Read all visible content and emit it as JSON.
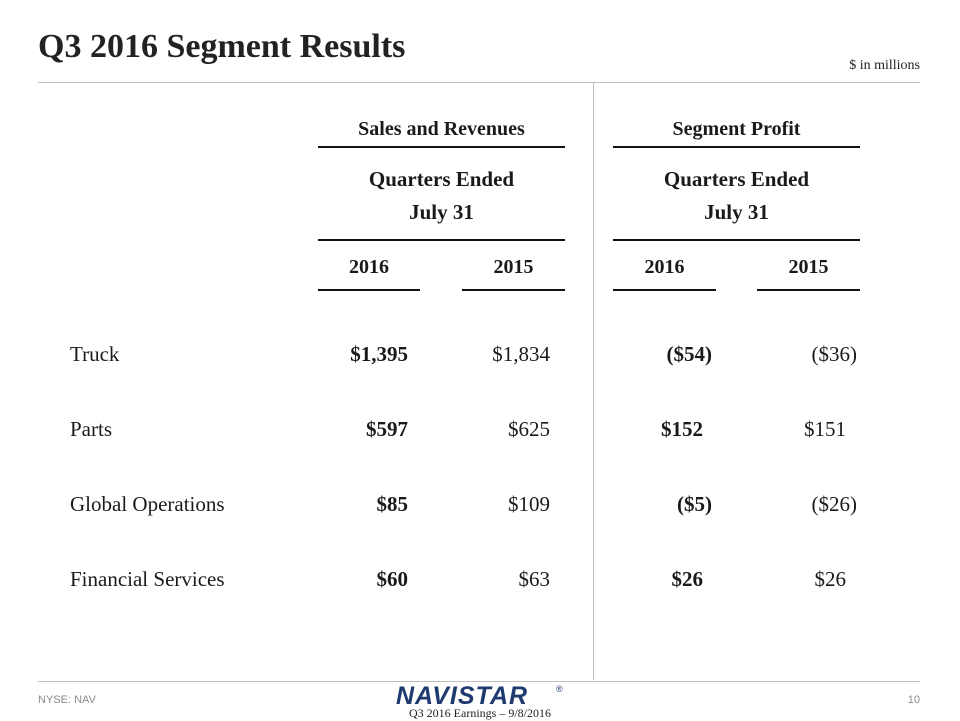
{
  "slide": {
    "title": "Q3 2016 Segment Results",
    "units": "$ in millions"
  },
  "columns": {
    "sales": {
      "group_label": "Sales and Revenues",
      "subheading_line1": "Quarters Ended",
      "subheading_line2": "July 31",
      "years": [
        "2016",
        "2015"
      ]
    },
    "profit": {
      "group_label": "Segment Profit",
      "subheading_line1": "Quarters Ended",
      "subheading_line2": "July 31",
      "years": [
        "2016",
        "2015"
      ]
    }
  },
  "rows": [
    {
      "label": "Truck",
      "sales_2016": "$1,395",
      "sales_2015": "$1,834",
      "profit_2016": "($54)",
      "profit_2015": "($36)"
    },
    {
      "label": "Parts",
      "sales_2016": "$597",
      "sales_2015": "$625",
      "profit_2016": "$152",
      "profit_2015": "$151"
    },
    {
      "label": "Global Operations",
      "sales_2016": "$85",
      "sales_2015": "$109",
      "profit_2016": "($5)",
      "profit_2015": "($26)"
    },
    {
      "label": "Financial Services",
      "sales_2016": "$60",
      "sales_2015": "$63",
      "profit_2016": "$26",
      "profit_2015": "$26"
    }
  ],
  "footer": {
    "ticker": "NYSE: NAV",
    "logo_text": "NAVISTAR",
    "registered_mark": "®",
    "caption": "Q3 2016 Earnings – 9/8/2016",
    "page_number": "10"
  },
  "colors": {
    "logo_navy": "#1f3a6e",
    "rule_gray": "#bfbfbf"
  }
}
